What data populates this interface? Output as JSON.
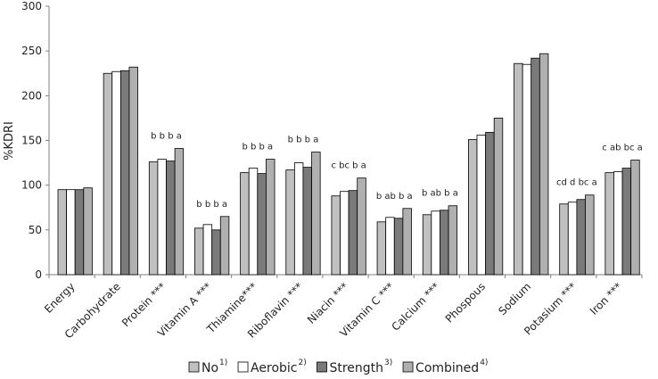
{
  "chart_data": {
    "type": "bar",
    "ylabel": "%KDRI",
    "ylim": [
      0,
      300
    ],
    "yticks": [
      0,
      50,
      100,
      150,
      200,
      250,
      300
    ],
    "categories": [
      "Energy",
      "Carbohydrate",
      "Protein ***",
      "Vitamin A ***",
      "Thiamine***",
      "Riboflavin ***",
      "Niacin ***",
      "Vitamin C ***",
      "Calcium ***",
      "Phospous",
      "Sodium",
      "Potasium ***",
      "Iron ***"
    ],
    "series": [
      {
        "name": "No",
        "sup": "1)",
        "color": "#c0c0c0",
        "values": [
          95,
          225,
          126,
          52,
          114,
          117,
          88,
          59,
          67,
          151,
          236,
          79,
          114
        ]
      },
      {
        "name": "Aerobic",
        "sup": "2)",
        "color": "#ffffff",
        "values": [
          95,
          227,
          129,
          56,
          119,
          125,
          93,
          64,
          71,
          156,
          235,
          81,
          115
        ]
      },
      {
        "name": "Strength",
        "sup": "3)",
        "color": "#7a7a7a",
        "values": [
          95,
          228,
          127,
          50,
          113,
          120,
          94,
          63,
          72,
          159,
          242,
          84,
          119
        ]
      },
      {
        "name": "Combined",
        "sup": "4)",
        "color": "#b0b0b0",
        "values": [
          97,
          232,
          141,
          65,
          129,
          137,
          108,
          74,
          77,
          175,
          247,
          89,
          128
        ]
      }
    ],
    "annotations": [
      "",
      "",
      "b b b a",
      "b b b a",
      "b b b a",
      "b b b a",
      "c bc b a",
      "b ab b a",
      "b ab b a",
      "",
      "",
      "cd d bc a",
      "c ab bc a"
    ],
    "legend_position": "bottom",
    "grid": false
  }
}
